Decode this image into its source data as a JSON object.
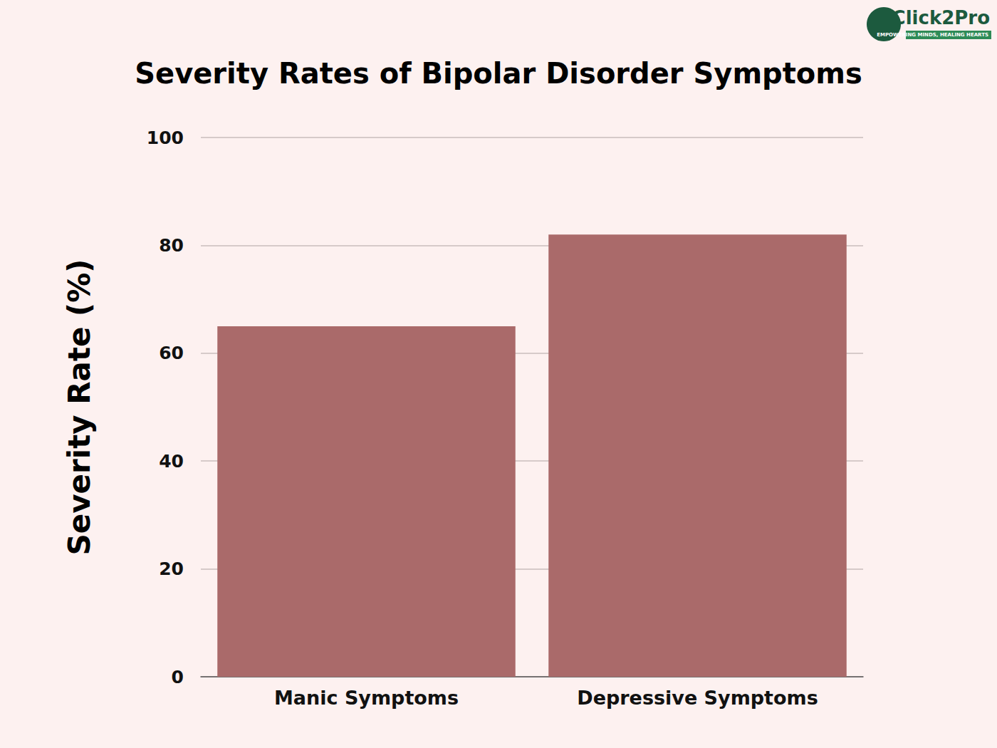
{
  "chart_data": {
    "type": "bar",
    "title": "Severity Rates of Bipolar Disorder Symptoms",
    "y_label": "Severity Rate (%)",
    "categories": [
      "Manic Symptoms",
      "Depressive Symptoms"
    ],
    "values": [
      65,
      82
    ],
    "color": "#aa6a6a",
    "ylim": [
      0,
      100
    ],
    "yticks": [
      0,
      20,
      40,
      60,
      80,
      100
    ],
    "grid": true,
    "annotations": [
      "Click2Pro",
      "EMPOWERING MINDS, HEALING HEARTS"
    ]
  }
}
